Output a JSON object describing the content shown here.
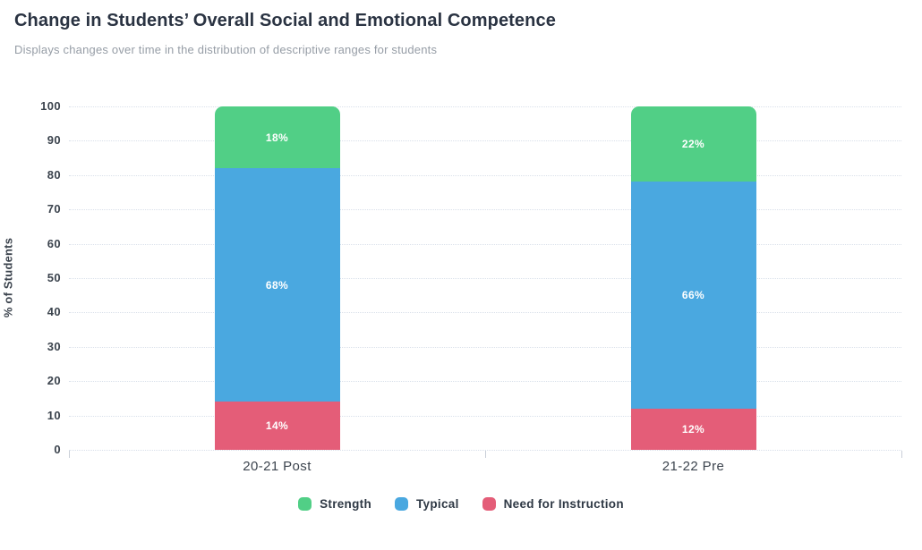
{
  "header": {
    "title": "Change in Students’ Overall Social and Emotional Competence",
    "subtitle": "Displays changes over time in the distribution of descriptive ranges for students"
  },
  "chart_data": {
    "type": "bar",
    "stacked": true,
    "categories": [
      "20-21 Post",
      "21-22 Pre"
    ],
    "series": [
      {
        "name": "Need for Instruction",
        "color": "#e45d78",
        "values": [
          14,
          12
        ]
      },
      {
        "name": "Typical",
        "color": "#4aa8e0",
        "values": [
          68,
          66
        ]
      },
      {
        "name": "Strength",
        "color": "#51cf86",
        "values": [
          18,
          22
        ]
      }
    ],
    "bar_value_label_suffix": "%",
    "ylabel": "% of Students",
    "ylim": [
      0,
      100
    ],
    "ytick_step": 10,
    "grid": "horizontal-dotted",
    "gridline_color": "#d9e0ea",
    "legend_position": "bottom",
    "legend": [
      {
        "label": "Strength",
        "color": "#51cf86"
      },
      {
        "label": "Typical",
        "color": "#4aa8e0"
      },
      {
        "label": "Need for Instruction",
        "color": "#e45d78"
      }
    ]
  }
}
